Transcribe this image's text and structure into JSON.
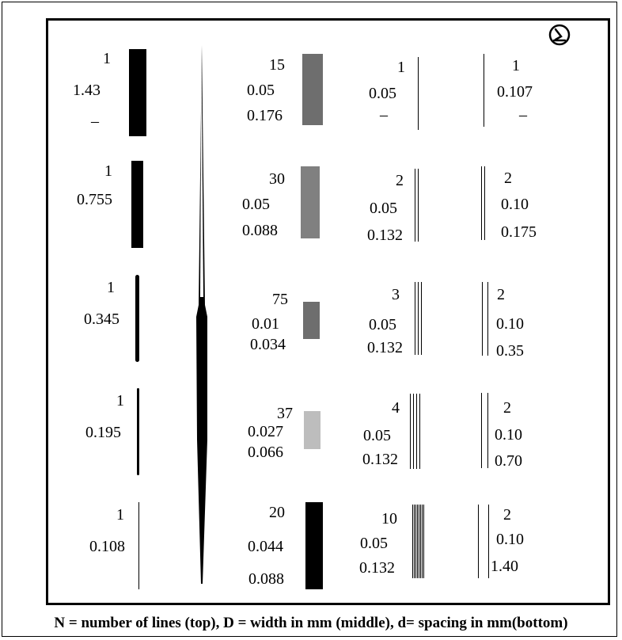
{
  "caption": "N = number of lines (top), D = width in mm (middle), d= spacing in mm(bottom)",
  "symbol_icon": "clock-like-circle-icon",
  "columns": [
    {
      "id": "col1",
      "rows": [
        {
          "n": "1",
          "d_width": "1.43",
          "spacing": "–"
        },
        {
          "n": "1",
          "d_width": "0.755",
          "spacing": ""
        },
        {
          "n": "1",
          "d_width": "0.345",
          "spacing": ""
        },
        {
          "n": "1",
          "d_width": "0.195",
          "spacing": ""
        },
        {
          "n": "1",
          "d_width": "0.108",
          "spacing": ""
        }
      ]
    },
    {
      "id": "col3",
      "rows": [
        {
          "n": "15",
          "d_width": "0.05",
          "spacing": "0.176"
        },
        {
          "n": "30",
          "d_width": "0.05",
          "spacing": "0.088"
        },
        {
          "n": "75",
          "d_width": "0.01",
          "spacing": "0.034"
        },
        {
          "n": "37",
          "d_width": "0.027",
          "spacing": "0.066"
        },
        {
          "n": "20",
          "d_width": "0.044",
          "spacing": "0.088"
        }
      ]
    },
    {
      "id": "col4",
      "rows": [
        {
          "n": "1",
          "d_width": "0.05",
          "spacing": "–"
        },
        {
          "n": "2",
          "d_width": "0.05",
          "spacing": "0.132"
        },
        {
          "n": "3",
          "d_width": "0.05",
          "spacing": "0.132"
        },
        {
          "n": "4",
          "d_width": "0.05",
          "spacing": "0.132"
        },
        {
          "n": "10",
          "d_width": "0.05",
          "spacing": "0.132"
        }
      ]
    },
    {
      "id": "col5",
      "rows": [
        {
          "n": "1",
          "d_width": "0.107",
          "spacing": "–"
        },
        {
          "n": "2",
          "d_width": "0.10",
          "spacing": "0.175"
        },
        {
          "n": "2",
          "d_width": "0.10",
          "spacing": "0.35"
        },
        {
          "n": "2",
          "d_width": "0.10",
          "spacing": "0.70"
        },
        {
          "n": "2",
          "d_width": "0.10",
          "spacing": "1.40"
        }
      ]
    }
  ],
  "colors": {
    "black": "#000000",
    "gray_dark": "#6e6e6e",
    "gray_mid": "#808080",
    "gray_light": "#bdbdbd"
  }
}
